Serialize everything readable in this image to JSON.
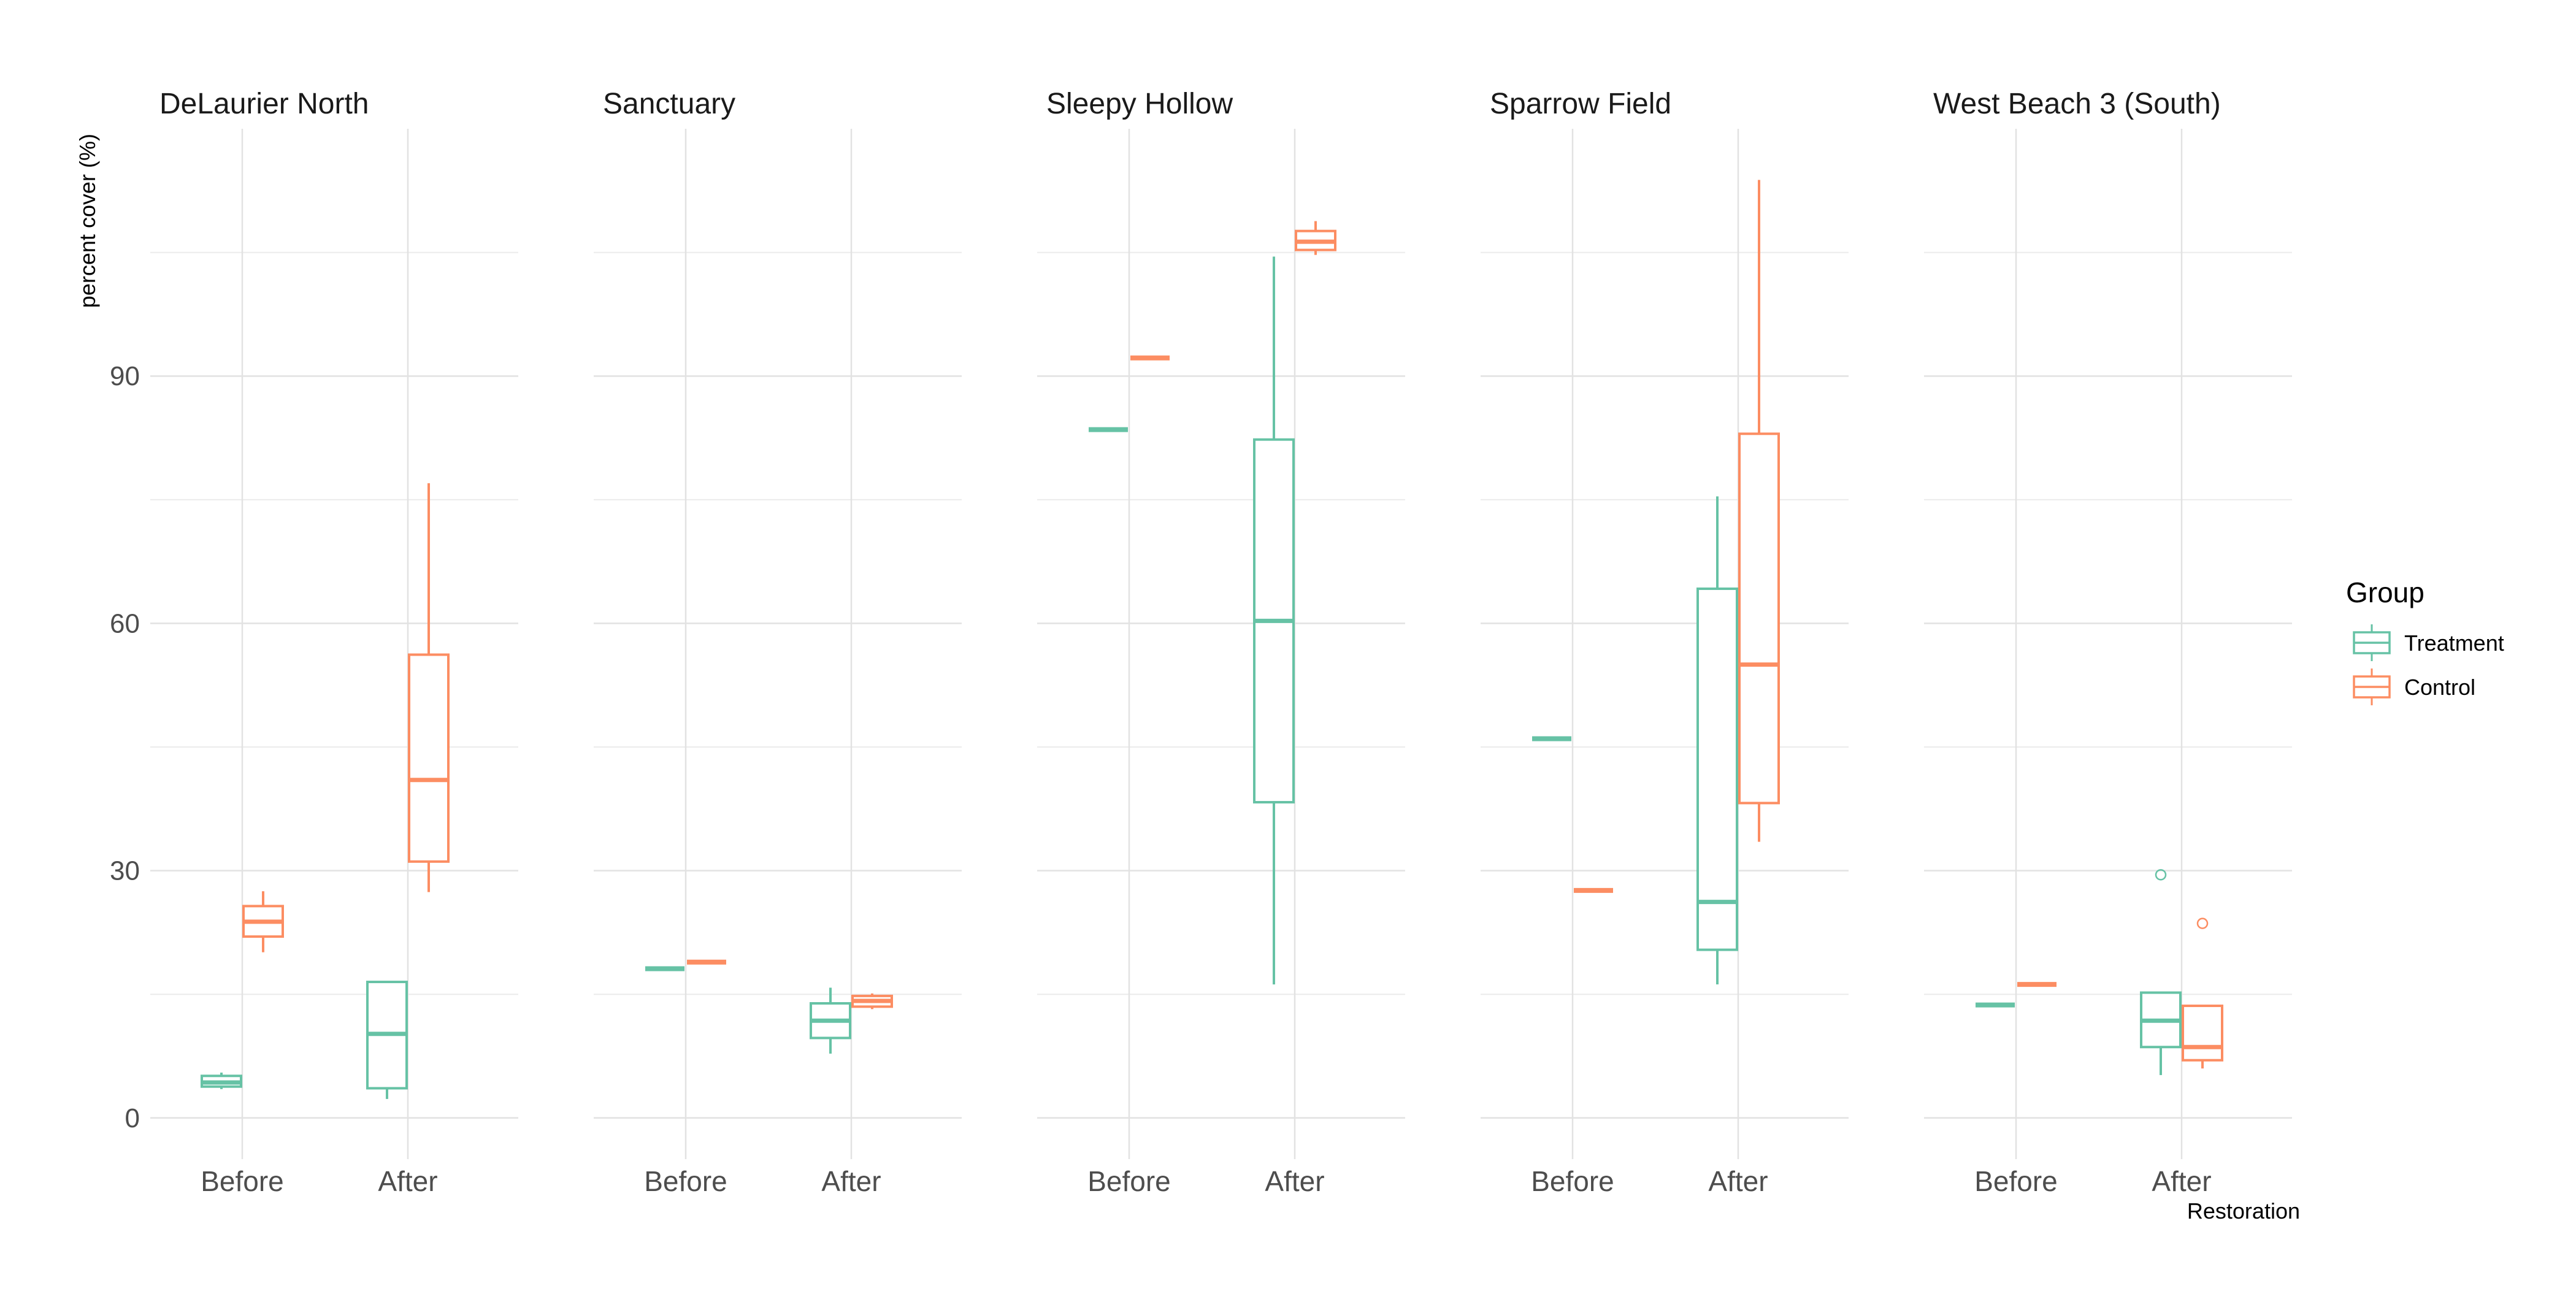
{
  "chart_data": {
    "type": "boxplot",
    "ylabel": "percent cover (%)",
    "xlabel": "Restoration",
    "ylim": [
      -5,
      120
    ],
    "y_ticks": [
      0,
      30,
      60,
      90
    ],
    "grid": true,
    "categories": [
      "Before",
      "After"
    ],
    "legend": {
      "title": "Group",
      "position": "right",
      "entries": [
        {
          "name": "Treatment",
          "color": "#66c2a5"
        },
        {
          "name": "Control",
          "color": "#fc8d62"
        }
      ]
    },
    "facets": [
      {
        "title": "DeLaurier North",
        "boxes": [
          {
            "category": "Before",
            "group": "Treatment",
            "min": 3.5,
            "q1": 3.8,
            "median": 4.3,
            "q3": 5.1,
            "max": 5.5,
            "outliers": []
          },
          {
            "category": "Before",
            "group": "Control",
            "min": 20.1,
            "q1": 22.0,
            "median": 23.8,
            "q3": 25.7,
            "max": 27.5,
            "outliers": []
          },
          {
            "category": "After",
            "group": "Treatment",
            "min": 2.3,
            "q1": 3.6,
            "median": 10.2,
            "q3": 16.5,
            "max": 16.5,
            "outliers": []
          },
          {
            "category": "After",
            "group": "Control",
            "min": 27.4,
            "q1": 31.1,
            "median": 41.0,
            "q3": 56.2,
            "max": 77.0,
            "outliers": []
          }
        ]
      },
      {
        "title": "Sanctuary",
        "boxes": [
          {
            "category": "Before",
            "group": "Treatment",
            "min": 18.1,
            "q1": 18.1,
            "median": 18.1,
            "q3": 18.1,
            "max": 18.1,
            "outliers": []
          },
          {
            "category": "Before",
            "group": "Control",
            "min": 18.9,
            "q1": 18.9,
            "median": 18.9,
            "q3": 18.9,
            "max": 18.9,
            "outliers": []
          },
          {
            "category": "After",
            "group": "Treatment",
            "min": 7.8,
            "q1": 9.7,
            "median": 11.8,
            "q3": 13.9,
            "max": 15.8,
            "outliers": []
          },
          {
            "category": "After",
            "group": "Control",
            "min": 13.2,
            "q1": 13.5,
            "median": 14.2,
            "q3": 14.8,
            "max": 15.1,
            "outliers": []
          }
        ]
      },
      {
        "title": "Sleepy Hollow",
        "boxes": [
          {
            "category": "Before",
            "group": "Treatment",
            "min": 83.5,
            "q1": 83.5,
            "median": 83.5,
            "q3": 83.5,
            "max": 83.5,
            "outliers": []
          },
          {
            "category": "Before",
            "group": "Control",
            "min": 92.2,
            "q1": 92.2,
            "median": 92.2,
            "q3": 92.2,
            "max": 92.2,
            "outliers": []
          },
          {
            "category": "After",
            "group": "Treatment",
            "min": 16.2,
            "q1": 38.3,
            "median": 60.3,
            "q3": 82.3,
            "max": 104.5,
            "outliers": []
          },
          {
            "category": "After",
            "group": "Control",
            "min": 104.7,
            "q1": 105.3,
            "median": 106.3,
            "q3": 107.6,
            "max": 108.8,
            "outliers": []
          }
        ]
      },
      {
        "title": "Sparrow Field",
        "boxes": [
          {
            "category": "Before",
            "group": "Treatment",
            "min": 46.0,
            "q1": 46.0,
            "median": 46.0,
            "q3": 46.0,
            "max": 46.0,
            "outliers": []
          },
          {
            "category": "Before",
            "group": "Control",
            "min": 27.6,
            "q1": 27.6,
            "median": 27.6,
            "q3": 27.6,
            "max": 27.6,
            "outliers": []
          },
          {
            "category": "After",
            "group": "Treatment",
            "min": 16.2,
            "q1": 20.4,
            "median": 26.2,
            "q3": 64.2,
            "max": 75.4,
            "outliers": []
          },
          {
            "category": "After",
            "group": "Control",
            "min": 33.5,
            "q1": 38.2,
            "median": 55.0,
            "q3": 83.0,
            "max": 113.8,
            "outliers": []
          }
        ]
      },
      {
        "title": "West Beach 3 (South)",
        "boxes": [
          {
            "category": "Before",
            "group": "Treatment",
            "min": 13.7,
            "q1": 13.7,
            "median": 13.7,
            "q3": 13.7,
            "max": 13.7,
            "outliers": []
          },
          {
            "category": "Before",
            "group": "Control",
            "min": 16.2,
            "q1": 16.2,
            "median": 16.2,
            "q3": 16.2,
            "max": 16.2,
            "outliers": []
          },
          {
            "category": "After",
            "group": "Treatment",
            "min": 5.2,
            "q1": 8.6,
            "median": 11.8,
            "q3": 15.2,
            "max": 15.2,
            "outliers": [
              29.5
            ]
          },
          {
            "category": "After",
            "group": "Control",
            "min": 6.0,
            "q1": 7.0,
            "median": 8.6,
            "q3": 13.6,
            "max": 13.6,
            "outliers": [
              23.6
            ]
          }
        ]
      }
    ]
  }
}
